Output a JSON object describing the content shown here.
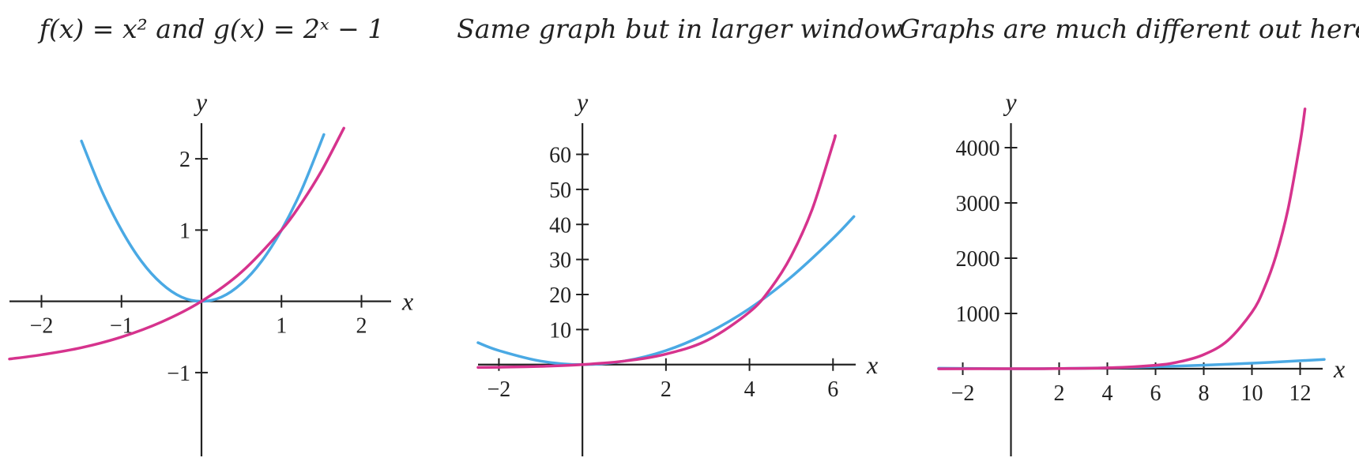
{
  "colors": {
    "f": "#4aa9e4",
    "g": "#d6338d",
    "axis": "#222222"
  },
  "chart_data": [
    {
      "type": "line",
      "title": "f(x) = x² and g(x) = 2ˣ − 1",
      "xlabel": "x",
      "ylabel": "y",
      "xlim": [
        -2.4,
        2.4
      ],
      "ylim": [
        -1.4,
        2.5
      ],
      "x_ticks": [
        -2,
        -1,
        1,
        2
      ],
      "x_tick_labels": [
        "−2",
        "−1",
        "1",
        "2"
      ],
      "y_ticks": [
        -1,
        1,
        2
      ],
      "y_tick_labels": [
        "−1",
        "1",
        "2"
      ],
      "series": [
        {
          "key": "f",
          "x": [
            -1.5,
            -1.25,
            -1,
            -0.75,
            -0.5,
            -0.25,
            0,
            0.25,
            0.5,
            0.75,
            1,
            1.25,
            1.53
          ],
          "y": [
            2.25,
            1.56,
            1,
            0.56,
            0.25,
            0.06,
            0,
            0.06,
            0.25,
            0.56,
            1,
            1.56,
            2.34
          ]
        },
        {
          "key": "g",
          "x": [
            -2.4,
            -2,
            -1.5,
            -1,
            -0.5,
            0,
            0.5,
            1,
            1.25,
            1.5,
            1.78
          ],
          "y": [
            -0.81,
            -0.75,
            -0.65,
            -0.5,
            -0.29,
            0,
            0.41,
            1,
            1.38,
            1.83,
            2.43
          ]
        }
      ]
    },
    {
      "type": "line",
      "title": "Same graph but in larger window",
      "xlabel": "x",
      "ylabel": "y",
      "xlim": [
        -2.5,
        6.6
      ],
      "ylim": [
        -12,
        68
      ],
      "x_ticks": [
        -2,
        2,
        4,
        6
      ],
      "x_tick_labels": [
        "−2",
        "2",
        "4",
        "6"
      ],
      "y_ticks": [
        10,
        20,
        30,
        40,
        50,
        60
      ],
      "y_tick_labels": [
        "10",
        "20",
        "30",
        "40",
        "50",
        "60"
      ],
      "series": [
        {
          "key": "f",
          "x": [
            -2.5,
            -2,
            -1,
            0,
            1,
            2,
            3,
            4,
            5,
            6,
            6.5
          ],
          "y": [
            6.25,
            4,
            1,
            0,
            1,
            4,
            9,
            16,
            25,
            36,
            42.25
          ]
        },
        {
          "key": "g",
          "x": [
            -2.5,
            -2,
            -1,
            0,
            1,
            2,
            3,
            4,
            4.5,
            5,
            5.5,
            6,
            6.05
          ],
          "y": [
            -0.82,
            -0.75,
            -0.5,
            0,
            1,
            3,
            7,
            15,
            21.6,
            31,
            44.3,
            63,
            65.3
          ]
        }
      ]
    },
    {
      "type": "line",
      "title": "Graphs are much different out here",
      "xlabel": "x",
      "ylabel": "y",
      "xlim": [
        -3,
        13
      ],
      "ylim": [
        -800,
        4500
      ],
      "x_ticks": [
        -2,
        2,
        4,
        6,
        8,
        10,
        12
      ],
      "x_tick_labels": [
        "−2",
        "2",
        "4",
        "6",
        "8",
        "10",
        "12"
      ],
      "y_ticks": [
        1000,
        2000,
        3000,
        4000
      ],
      "y_tick_labels": [
        "1000",
        "2000",
        "3000",
        "4000"
      ],
      "series": [
        {
          "key": "f",
          "x": [
            -3,
            0,
            2,
            4,
            6,
            8,
            10,
            12,
            13
          ],
          "y": [
            9,
            0,
            4,
            16,
            36,
            64,
            100,
            144,
            169
          ]
        },
        {
          "key": "g",
          "x": [
            -3,
            0,
            2,
            4,
            6,
            7,
            8,
            9,
            10,
            10.5,
            11,
            11.5,
            12,
            12.2
          ],
          "y": [
            -0.9,
            0,
            3,
            15,
            63,
            127,
            255,
            511,
            1023,
            1447,
            2047,
            2895,
            4095,
            4700
          ]
        }
      ]
    }
  ]
}
